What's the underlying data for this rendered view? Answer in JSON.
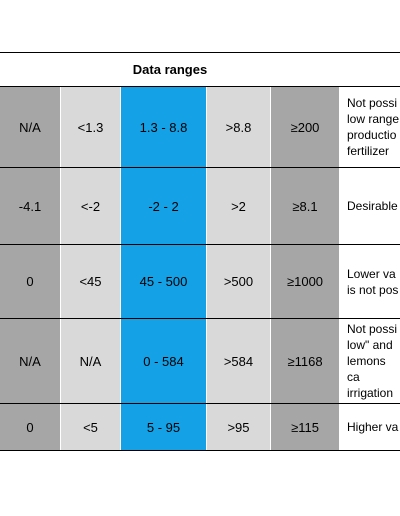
{
  "table": {
    "title": "Data ranges",
    "rows": [
      {
        "c1": "N/A",
        "c2": "<1.3",
        "c3": "1.3 - 8.8",
        "c4": ">8.8",
        "c5": "≥200",
        "note": "Not possi\nlow range\nproductio\nfertilizer"
      },
      {
        "c1": "-4.1",
        "c2": "<-2",
        "c3": "-2 - 2",
        "c4": ">2",
        "c5": "≥8.1",
        "note": "Desirable"
      },
      {
        "c1": "0",
        "c2": "<45",
        "c3": "45 - 500",
        "c4": ">500",
        "c5": "≥1000",
        "note": "Lower va\nis not pos"
      },
      {
        "c1": "N/A",
        "c2": "N/A",
        "c3": "0 - 584",
        "c4": ">584",
        "c5": "≥1168",
        "note": "Not possi\nlow\" and\nlemons ca\nirrigation"
      },
      {
        "c1": "0",
        "c2": "<5",
        "c3": "5 - 95",
        "c4": ">95",
        "c5": "≥115",
        "note": "Higher va"
      }
    ]
  }
}
